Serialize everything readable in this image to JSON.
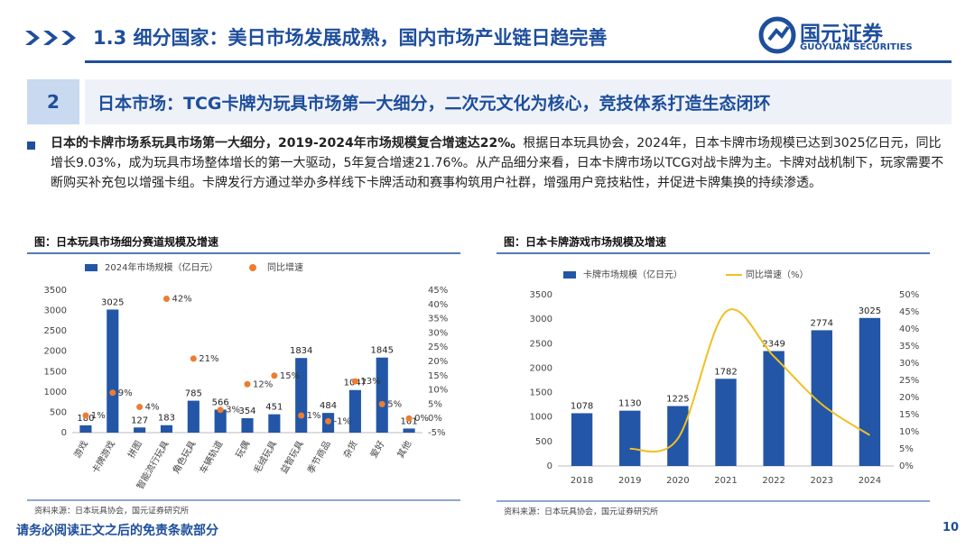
{
  "header": {
    "title": "1.3 细分国家：美日市场发展成熟，国内市场产业链日趋完善",
    "logo_name": "国元证券",
    "logo_en": "GUOYUAN SECURITIES"
  },
  "section": {
    "number": "2",
    "title": "日本市场：TCG卡牌为玩具市场第一大细分，二次元文化为核心，竞技体系打造生态闭环"
  },
  "body": {
    "lead": "日本的卡牌市场系玩具市场第一大细分，2019-2024年市场规模复合增速达22%。",
    "text": "根据日本玩具协会，2024年，日本卡牌市场规模已达到3025亿日元，同比增长9.03%，成为玩具市场整体增长的第一大驱动，5年复合增速21.76%。从产品细分来看，日本卡牌市场以TCG对战卡牌为主。卡牌对战机制下，玩家需要不断购买补充包以增强卡组。卡牌发行方通过举办多样线下卡牌活动和赛事构筑用户社群，增强用户竞技粘性，并促进卡牌集换的持续渗透。"
  },
  "chart_data": [
    {
      "type": "bar",
      "title": "图：日本玩具市场细分赛道规模及增速",
      "source": "资料来源：日本玩具协会，国元证券研究所",
      "rotate_labels": true,
      "categories": [
        "游戏",
        "卡牌游戏",
        "拼图",
        "智能流行玩具",
        "角色玩具",
        "车辆轨道",
        "玩偶",
        "毛绒玩具",
        "益智玩具",
        "季节商品",
        "杂货",
        "爱好",
        "其他"
      ],
      "series": [
        {
          "name": "2024年市场规模（亿日元）",
          "type": "bar",
          "color": "#2356a6",
          "values": [
            180,
            3025,
            127,
            183,
            785,
            566,
            354,
            451,
            1834,
            484,
            1047,
            1845,
            101
          ]
        },
        {
          "name": "同比增速",
          "type": "scatter",
          "axis": "y2",
          "color": "#ed7d31",
          "values": [
            1,
            9,
            4,
            42,
            21,
            3,
            12,
            15,
            1,
            -1,
            13,
            5,
            0
          ],
          "value_labels": [
            "1%",
            "9%",
            "4%",
            "42%",
            "21%",
            "3%",
            "12%",
            "15%",
            "1%",
            "-1%",
            "13%",
            "5%",
            "0%"
          ]
        }
      ],
      "ylim": [
        0,
        3500
      ],
      "yticks": [
        0,
        500,
        1000,
        1500,
        2000,
        2500,
        3000,
        3500
      ],
      "y2lim": [
        -5,
        45
      ],
      "y2ticks": [
        {
          "value": -5,
          "label": "-5%"
        },
        {
          "value": 0,
          "label": "0%"
        },
        {
          "value": 5,
          "label": "5%"
        },
        {
          "value": 10,
          "label": "10%"
        },
        {
          "value": 15,
          "label": "15%"
        },
        {
          "value": 20,
          "label": "20%"
        },
        {
          "value": 25,
          "label": "25%"
        },
        {
          "value": 30,
          "label": "30%"
        },
        {
          "value": 35,
          "label": "35%"
        },
        {
          "value": 40,
          "label": "40%"
        },
        {
          "value": 45,
          "label": "45%"
        }
      ]
    },
    {
      "type": "bar",
      "title": "图：日本卡牌游戏市场规模及增速",
      "source": "资料来源：日本玩具协会，国元证券研究所",
      "rotate_labels": false,
      "categories": [
        "2018",
        "2019",
        "2020",
        "2021",
        "2022",
        "2023",
        "2024"
      ],
      "series": [
        {
          "name": "卡牌市场规模（亿日元）",
          "type": "bar",
          "color": "#2356a6",
          "values": [
            1078,
            1130,
            1225,
            1782,
            2349,
            2774,
            3025
          ]
        },
        {
          "name": "同比增速（%）",
          "type": "line",
          "axis": "y2",
          "color": "#f0c020",
          "values": [
            null,
            5,
            8,
            45,
            32,
            18,
            9
          ]
        }
      ],
      "ylim": [
        0,
        3500
      ],
      "yticks": [
        0,
        500,
        1000,
        1500,
        2000,
        2500,
        3000,
        3500
      ],
      "y2lim": [
        0,
        50
      ],
      "y2ticks": [
        {
          "value": 0,
          "label": "0%"
        },
        {
          "value": 5,
          "label": "5%"
        },
        {
          "value": 10,
          "label": "10%"
        },
        {
          "value": 15,
          "label": "15%"
        },
        {
          "value": 20,
          "label": "20%"
        },
        {
          "value": 25,
          "label": "25%"
        },
        {
          "value": 30,
          "label": "30%"
        },
        {
          "value": 35,
          "label": "35%"
        },
        {
          "value": 40,
          "label": "40%"
        },
        {
          "value": 45,
          "label": "45%"
        },
        {
          "value": 50,
          "label": "50%"
        }
      ]
    }
  ],
  "footer": {
    "disclaimer": "请务必阅读正文之后的免责条款部分",
    "page": "10"
  }
}
